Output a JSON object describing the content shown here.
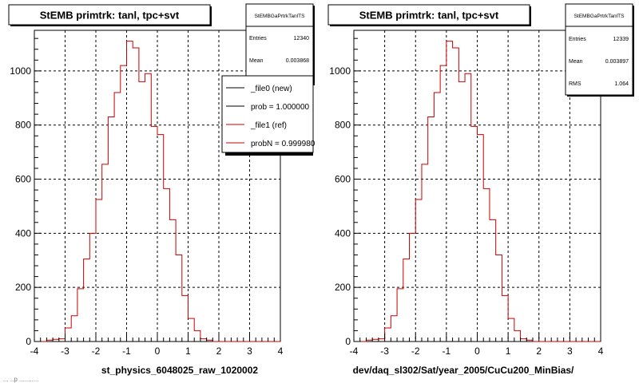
{
  "colors": {
    "background": "#ffffff",
    "frame": "#000000",
    "grid": "#000000",
    "histogram": "#cc0000",
    "shadow": "#000000",
    "legend_file0": "#000000",
    "legend_file1": "#cc0000"
  },
  "footer": {
    "text": "... ..p ..........."
  },
  "panels": [
    {
      "title": "StEMB primtrk: tanl, tpc+svt",
      "xlabel": "st_physics_6048025_raw_1020002",
      "stats": {
        "name": "StEMBGaPrtrkTanlTS",
        "rows": [
          {
            "label": "Entries",
            "value": "12340"
          },
          {
            "label": "Mean",
            "value": "0.003868"
          }
        ]
      },
      "legend": {
        "entries": [
          {
            "label": "_file0 (new)",
            "color": "#000000"
          },
          {
            "label": "prob = 1.000000",
            "color": "#000000"
          },
          {
            "label": "_file1 (ref)",
            "color": "#cc0000"
          },
          {
            "label": "probN = 0.999980",
            "color": "#cc0000"
          }
        ]
      }
    },
    {
      "title": "StEMB primtrk: tanl, tpc+svt",
      "xlabel": "dev/daq_sl302/Sat/year_2005/CuCu200_MinBias/",
      "stats": {
        "name": "StEMBGaPrtrkTanlTS",
        "rows": [
          {
            "label": "Entries",
            "value": "12339"
          },
          {
            "label": "Mean",
            "value": "0.003897"
          },
          {
            "label": "RMS",
            "value": "1.064"
          }
        ]
      },
      "legend": null
    }
  ],
  "chart_data": [
    {
      "type": "bar",
      "title": "StEMB primtrk: tanl, tpc+svt",
      "xlabel": "st_physics_6048025_raw_1020002",
      "ylabel": "",
      "xlim": [
        -4,
        4
      ],
      "ylim": [
        0,
        1150
      ],
      "grid": true,
      "legend_position": "top-right",
      "x_ticks": [
        -4,
        -3,
        -2,
        -1,
        0,
        1,
        2,
        3,
        4
      ],
      "y_ticks": [
        0,
        200,
        400,
        600,
        800,
        1000
      ],
      "bin_edges": [
        -4.0,
        -3.8,
        -3.6,
        -3.4,
        -3.2,
        -3.0,
        -2.8,
        -2.6,
        -2.4,
        -2.2,
        -2.0,
        -1.8,
        -1.6,
        -1.4,
        -1.2,
        -1.0,
        -0.8,
        -0.6,
        -0.4,
        -0.2,
        0.0,
        0.2,
        0.4,
        0.6,
        0.8,
        1.0,
        1.2,
        1.4,
        1.6,
        1.8,
        2.0,
        2.2,
        2.4,
        2.6,
        2.8,
        3.0,
        3.2,
        3.4,
        3.6,
        3.8,
        4.0
      ],
      "values": [
        0,
        0,
        5,
        8,
        10,
        50,
        95,
        195,
        305,
        400,
        525,
        655,
        830,
        920,
        1020,
        1110,
        1085,
        960,
        990,
        795,
        765,
        565,
        450,
        320,
        170,
        85,
        40,
        10,
        5,
        0,
        0,
        0,
        0,
        0,
        0,
        0,
        0,
        0,
        0,
        0
      ],
      "series": [
        {
          "name": "_file1 (ref)",
          "color": "#cc0000"
        }
      ]
    },
    {
      "type": "bar",
      "title": "StEMB primtrk: tanl, tpc+svt",
      "xlabel": "dev/daq_sl302/Sat/year_2005/CuCu200_MinBias/",
      "ylabel": "",
      "xlim": [
        -4,
        4
      ],
      "ylim": [
        0,
        1150
      ],
      "grid": true,
      "x_ticks": [
        -4,
        -3,
        -2,
        -1,
        0,
        1,
        2,
        3,
        4
      ],
      "y_ticks": [
        0,
        200,
        400,
        600,
        800,
        1000
      ],
      "bin_edges": [
        -4.0,
        -3.8,
        -3.6,
        -3.4,
        -3.2,
        -3.0,
        -2.8,
        -2.6,
        -2.4,
        -2.2,
        -2.0,
        -1.8,
        -1.6,
        -1.4,
        -1.2,
        -1.0,
        -0.8,
        -0.6,
        -0.4,
        -0.2,
        0.0,
        0.2,
        0.4,
        0.6,
        0.8,
        1.0,
        1.2,
        1.4,
        1.6,
        1.8,
        2.0,
        2.2,
        2.4,
        2.6,
        2.8,
        3.0,
        3.2,
        3.4,
        3.6,
        3.8,
        4.0
      ],
      "values": [
        0,
        0,
        5,
        8,
        10,
        50,
        95,
        195,
        305,
        400,
        525,
        655,
        830,
        920,
        1020,
        1110,
        1085,
        960,
        990,
        795,
        765,
        565,
        450,
        320,
        170,
        85,
        40,
        10,
        5,
        0,
        0,
        0,
        0,
        0,
        0,
        0,
        0,
        0,
        0,
        0
      ],
      "series": []
    }
  ]
}
